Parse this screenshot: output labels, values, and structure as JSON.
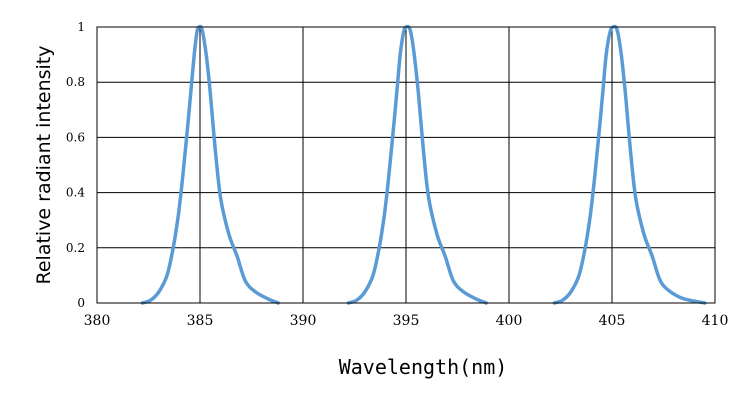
{
  "chart_data": {
    "type": "line",
    "title": "",
    "xlabel": "Wavelength(nm)",
    "ylabel": "Relative radiant intensity",
    "xlim": [
      380,
      410
    ],
    "ylim": [
      0,
      1
    ],
    "x_ticks": [
      380,
      385,
      390,
      395,
      400,
      405,
      410
    ],
    "y_ticks": [
      0,
      0.2,
      0.4,
      0.6,
      0.8,
      1
    ],
    "y_tick_labels": [
      "0",
      "0.2",
      "0.4",
      "0.6",
      "0.8",
      "1"
    ],
    "grid": true,
    "line_color": "#5b9bd5",
    "series": [
      {
        "peak": 385,
        "points": [
          [
            382.2,
            0
          ],
          [
            382.6,
            0.01
          ],
          [
            383.0,
            0.04
          ],
          [
            383.4,
            0.1
          ],
          [
            383.7,
            0.2
          ],
          [
            383.95,
            0.32
          ],
          [
            384.15,
            0.45
          ],
          [
            384.35,
            0.6
          ],
          [
            384.55,
            0.76
          ],
          [
            384.72,
            0.9
          ],
          [
            384.85,
            0.98
          ],
          [
            384.95,
            1.0
          ],
          [
            385.1,
            0.99
          ],
          [
            385.3,
            0.9
          ],
          [
            385.5,
            0.76
          ],
          [
            385.75,
            0.55
          ],
          [
            386.0,
            0.38
          ],
          [
            386.4,
            0.25
          ],
          [
            386.8,
            0.17
          ],
          [
            387.2,
            0.08
          ],
          [
            387.7,
            0.04
          ],
          [
            388.3,
            0.015
          ],
          [
            388.8,
            0
          ]
        ]
      },
      {
        "peak": 395,
        "points": [
          [
            392.2,
            0
          ],
          [
            392.6,
            0.01
          ],
          [
            393.0,
            0.04
          ],
          [
            393.4,
            0.1
          ],
          [
            393.7,
            0.2
          ],
          [
            393.95,
            0.32
          ],
          [
            394.15,
            0.45
          ],
          [
            394.35,
            0.6
          ],
          [
            394.55,
            0.76
          ],
          [
            394.72,
            0.9
          ],
          [
            394.88,
            0.98
          ],
          [
            395.0,
            1.0
          ],
          [
            395.2,
            0.99
          ],
          [
            395.4,
            0.9
          ],
          [
            395.6,
            0.76
          ],
          [
            395.85,
            0.55
          ],
          [
            396.1,
            0.38
          ],
          [
            396.5,
            0.25
          ],
          [
            396.9,
            0.17
          ],
          [
            397.3,
            0.08
          ],
          [
            397.8,
            0.04
          ],
          [
            398.4,
            0.015
          ],
          [
            398.9,
            0
          ]
        ]
      },
      {
        "peak": 405,
        "points": [
          [
            402.2,
            0
          ],
          [
            402.6,
            0.01
          ],
          [
            403.0,
            0.04
          ],
          [
            403.4,
            0.1
          ],
          [
            403.7,
            0.2
          ],
          [
            403.95,
            0.32
          ],
          [
            404.15,
            0.45
          ],
          [
            404.35,
            0.6
          ],
          [
            404.55,
            0.76
          ],
          [
            404.72,
            0.9
          ],
          [
            404.9,
            0.98
          ],
          [
            405.05,
            1.0
          ],
          [
            405.25,
            0.99
          ],
          [
            405.45,
            0.9
          ],
          [
            405.65,
            0.76
          ],
          [
            405.9,
            0.55
          ],
          [
            406.15,
            0.38
          ],
          [
            406.55,
            0.25
          ],
          [
            406.95,
            0.17
          ],
          [
            407.35,
            0.08
          ],
          [
            407.85,
            0.04
          ],
          [
            408.5,
            0.015
          ],
          [
            409.5,
            0
          ]
        ]
      }
    ]
  }
}
